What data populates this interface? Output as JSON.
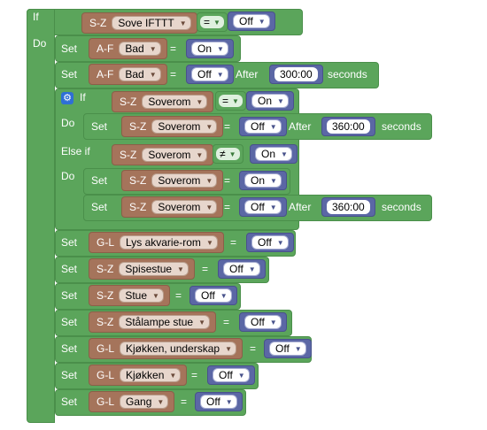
{
  "keywords": {
    "if": "If",
    "do": "Do",
    "else_if": "Else if",
    "set": "Set",
    "after": "After",
    "seconds": "seconds"
  },
  "condition_1": {
    "category": "S-Z",
    "device": "Sove IFTTT",
    "operator": "=",
    "value": "Off"
  },
  "action_1": {
    "category": "A-F",
    "device": "Bad",
    "value": "On"
  },
  "action_2": {
    "category": "A-F",
    "device": "Bad",
    "value": "Off",
    "delay": "300:00"
  },
  "inner_if": {
    "condition": {
      "category": "S-Z",
      "device": "Soverom",
      "operator": "=",
      "value": "On"
    },
    "action": {
      "category": "S-Z",
      "device": "Soverom",
      "value": "Off",
      "delay": "360:00"
    },
    "else_if_condition": {
      "category": "S-Z",
      "device": "Soverom",
      "operator": "≠",
      "value": "On"
    },
    "else_actions": [
      {
        "category": "S-Z",
        "device": "Soverom",
        "value": "On"
      },
      {
        "category": "S-Z",
        "device": "Soverom",
        "value": "Off",
        "delay": "360:00"
      }
    ]
  },
  "actions_after": [
    {
      "category": "G-L",
      "device": "Lys akvarie-rom",
      "value": "Off"
    },
    {
      "category": "S-Z",
      "device": "Spisestue",
      "value": "Off"
    },
    {
      "category": "S-Z",
      "device": "Stue",
      "value": "Off"
    },
    {
      "category": "S-Z",
      "device": "Stålampe stue",
      "value": "Off"
    },
    {
      "category": "G-L",
      "device": "Kjøkken, underskap",
      "value": "Off"
    },
    {
      "category": "G-L",
      "device": "Kjøkken",
      "value": "Off"
    },
    {
      "category": "G-L",
      "device": "Gang",
      "value": "Off"
    }
  ],
  "colors": {
    "logic_green": "#5ba55b",
    "device_brown": "#a5745b",
    "value_blue": "#5b67a5",
    "gear_blue": "#2f6fd6"
  },
  "icons": {
    "gear": "gear-icon"
  }
}
